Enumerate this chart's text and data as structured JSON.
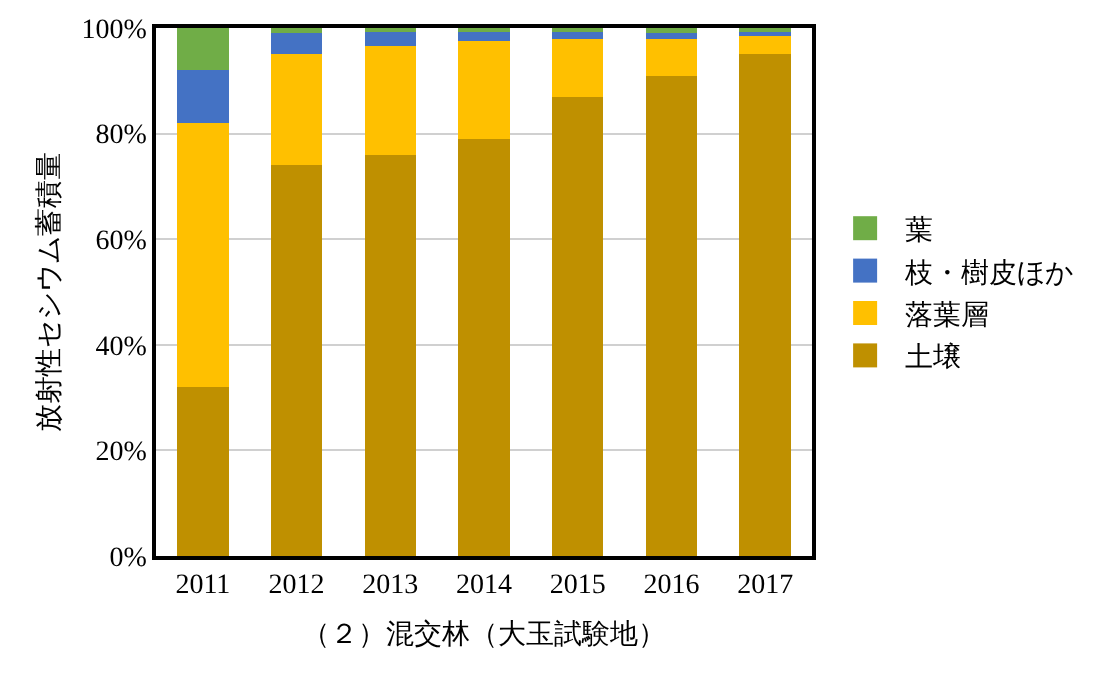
{
  "chart_data": {
    "type": "bar",
    "stacked": true,
    "xlabel": "（２）混交林（大玉試験地）",
    "ylabel": "放射性セシウム蓄積量",
    "categories": [
      "2011",
      "2012",
      "2013",
      "2014",
      "2015",
      "2016",
      "2017"
    ],
    "series": [
      {
        "name": "土壌",
        "color": "#bf9000",
        "values": [
          32,
          74,
          76,
          79,
          87,
          91,
          95
        ]
      },
      {
        "name": "落葉層",
        "color": "#ffc000",
        "values": [
          50,
          21,
          20.5,
          18.5,
          11,
          7,
          3.5
        ]
      },
      {
        "name": "枝・樹皮ほか",
        "color": "#4472c4",
        "values": [
          10,
          4,
          3,
          2,
          1.5,
          1,
          1
        ]
      },
      {
        "name": "葉",
        "color": "#70ad47",
        "values": [
          8,
          1,
          0.5,
          0.5,
          0.5,
          1,
          0.5
        ]
      }
    ],
    "ylim": [
      0,
      100
    ],
    "yticks": [
      {
        "value": 0,
        "label": "0%"
      },
      {
        "value": 20,
        "label": "20%"
      },
      {
        "value": 40,
        "label": "40%"
      },
      {
        "value": 60,
        "label": "60%"
      },
      {
        "value": 80,
        "label": "80%"
      },
      {
        "value": 100,
        "label": "100%"
      }
    ],
    "grid": "y",
    "legend": "right"
  }
}
